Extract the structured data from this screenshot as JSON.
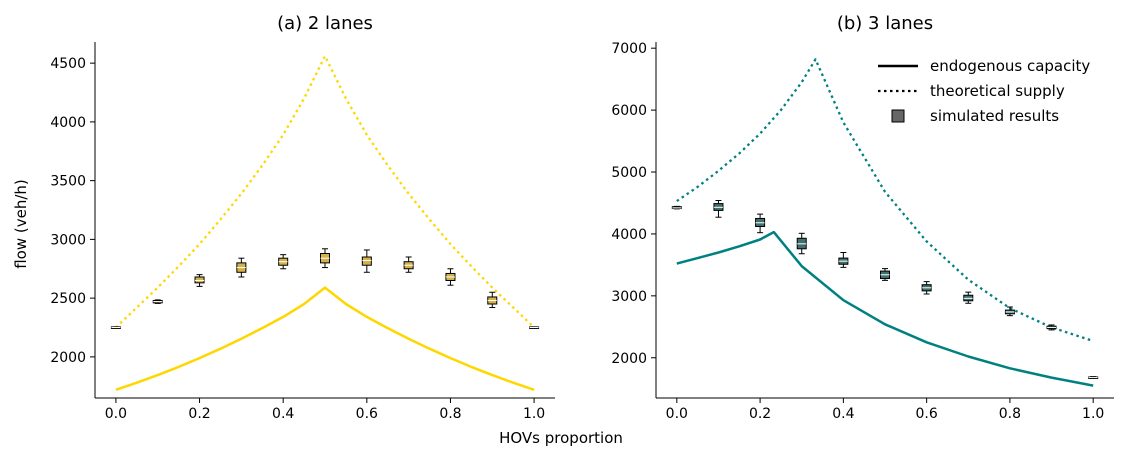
{
  "figure": {
    "shared_xlabel": "HOVs proportion",
    "shared_ylabel": "flow (veh/h)"
  },
  "chart_data": [
    {
      "type": "line",
      "title": "(a) 2 lanes",
      "xlabel": "HOVs proportion",
      "ylabel": "flow (veh/h)",
      "xlim": [
        -0.05,
        1.05
      ],
      "ylim": [
        1650,
        4680
      ],
      "xticks": [
        0.0,
        0.2,
        0.4,
        0.6,
        0.8,
        1.0
      ],
      "xtick_labels": [
        "0.0",
        "0.2",
        "0.4",
        "0.6",
        "0.8",
        "1.0"
      ],
      "yticks": [
        2000,
        2500,
        3000,
        3500,
        4000,
        4500
      ],
      "ytick_labels": [
        "2000",
        "2500",
        "3000",
        "3500",
        "4000",
        "4500"
      ],
      "color": "#FFD700",
      "box_fill": "#D4B24A",
      "series": [
        {
          "name": "endogenous capacity",
          "style": "solid",
          "x": [
            0.0,
            0.05,
            0.1,
            0.15,
            0.2,
            0.25,
            0.3,
            0.35,
            0.4,
            0.45,
            0.5,
            0.55,
            0.6,
            0.65,
            0.7,
            0.75,
            0.8,
            0.85,
            0.9,
            0.95,
            1.0
          ],
          "y": [
            1720,
            1780,
            1845,
            1915,
            1990,
            2070,
            2155,
            2245,
            2340,
            2450,
            2590,
            2450,
            2340,
            2245,
            2155,
            2070,
            1990,
            1915,
            1845,
            1780,
            1720
          ]
        },
        {
          "name": "theoretical supply",
          "style": "dotted",
          "x": [
            0.0,
            0.05,
            0.1,
            0.15,
            0.2,
            0.25,
            0.3,
            0.35,
            0.4,
            0.45,
            0.5,
            0.55,
            0.6,
            0.65,
            0.7,
            0.75,
            0.8,
            0.85,
            0.9,
            0.95,
            1.0
          ],
          "y": [
            2250,
            2420,
            2590,
            2770,
            2960,
            3170,
            3390,
            3630,
            3890,
            4200,
            4560,
            4200,
            3890,
            3630,
            3390,
            3170,
            2960,
            2770,
            2590,
            2420,
            2250
          ]
        }
      ],
      "boxes": [
        {
          "x": 0.0,
          "median": 2250,
          "q1": 2245,
          "q3": 2255,
          "lo": 2245,
          "hi": 2255
        },
        {
          "x": 0.1,
          "median": 2470,
          "q1": 2460,
          "q3": 2480,
          "lo": 2455,
          "hi": 2485
        },
        {
          "x": 0.2,
          "median": 2650,
          "q1": 2630,
          "q3": 2680,
          "lo": 2600,
          "hi": 2700
        },
        {
          "x": 0.3,
          "median": 2760,
          "q1": 2720,
          "q3": 2800,
          "lo": 2680,
          "hi": 2840
        },
        {
          "x": 0.4,
          "median": 2810,
          "q1": 2780,
          "q3": 2840,
          "lo": 2750,
          "hi": 2870
        },
        {
          "x": 0.5,
          "median": 2840,
          "q1": 2800,
          "q3": 2880,
          "lo": 2760,
          "hi": 2920
        },
        {
          "x": 0.6,
          "median": 2820,
          "q1": 2780,
          "q3": 2850,
          "lo": 2720,
          "hi": 2910
        },
        {
          "x": 0.7,
          "median": 2780,
          "q1": 2750,
          "q3": 2810,
          "lo": 2720,
          "hi": 2850
        },
        {
          "x": 0.8,
          "median": 2680,
          "q1": 2650,
          "q3": 2710,
          "lo": 2610,
          "hi": 2750
        },
        {
          "x": 0.9,
          "median": 2480,
          "q1": 2450,
          "q3": 2510,
          "lo": 2420,
          "hi": 2550
        },
        {
          "x": 1.0,
          "median": 2250,
          "q1": 2245,
          "q3": 2255,
          "lo": 2245,
          "hi": 2255
        }
      ]
    },
    {
      "type": "line",
      "title": "(b) 3 lanes",
      "xlabel": "HOVs proportion",
      "ylabel": "",
      "xlim": [
        -0.05,
        1.05
      ],
      "ylim": [
        1350,
        7100
      ],
      "xticks": [
        0.0,
        0.2,
        0.4,
        0.6,
        0.8,
        1.0
      ],
      "xtick_labels": [
        "0.0",
        "0.2",
        "0.4",
        "0.6",
        "0.8",
        "1.0"
      ],
      "yticks": [
        2000,
        3000,
        4000,
        5000,
        6000,
        7000
      ],
      "ytick_labels": [
        "2000",
        "3000",
        "4000",
        "5000",
        "6000",
        "7000"
      ],
      "color": "#008080",
      "box_fill": "#3F6F6F",
      "series": [
        {
          "name": "endogenous capacity",
          "style": "solid",
          "x": [
            0.0,
            0.05,
            0.1,
            0.15,
            0.2,
            0.233,
            0.3,
            0.4,
            0.5,
            0.6,
            0.7,
            0.8,
            0.9,
            1.0
          ],
          "y": [
            3520,
            3610,
            3700,
            3800,
            3910,
            4030,
            3480,
            2930,
            2540,
            2250,
            2020,
            1830,
            1680,
            1550
          ]
        },
        {
          "name": "theoretical supply",
          "style": "dotted",
          "x": [
            0.0,
            0.05,
            0.1,
            0.15,
            0.2,
            0.25,
            0.3,
            0.333,
            0.4,
            0.5,
            0.6,
            0.7,
            0.8,
            0.9,
            1.0
          ],
          "y": [
            4530,
            4760,
            5020,
            5300,
            5620,
            6000,
            6450,
            6820,
            5800,
            4680,
            3880,
            3260,
            2800,
            2490,
            2270
          ]
        }
      ],
      "boxes": [
        {
          "x": 0.0,
          "median": 4420,
          "q1": 4410,
          "q3": 4440,
          "lo": 4405,
          "hi": 4445
        },
        {
          "x": 0.1,
          "median": 4430,
          "q1": 4380,
          "q3": 4490,
          "lo": 4270,
          "hi": 4540
        },
        {
          "x": 0.2,
          "median": 4180,
          "q1": 4120,
          "q3": 4250,
          "lo": 4020,
          "hi": 4320
        },
        {
          "x": 0.3,
          "median": 3840,
          "q1": 3760,
          "q3": 3930,
          "lo": 3680,
          "hi": 4010
        },
        {
          "x": 0.4,
          "median": 3560,
          "q1": 3510,
          "q3": 3610,
          "lo": 3460,
          "hi": 3700
        },
        {
          "x": 0.5,
          "median": 3340,
          "q1": 3280,
          "q3": 3400,
          "lo": 3250,
          "hi": 3440
        },
        {
          "x": 0.6,
          "median": 3130,
          "q1": 3080,
          "q3": 3180,
          "lo": 3030,
          "hi": 3230
        },
        {
          "x": 0.7,
          "median": 2960,
          "q1": 2920,
          "q3": 3010,
          "lo": 2880,
          "hi": 3060
        },
        {
          "x": 0.8,
          "median": 2740,
          "q1": 2710,
          "q3": 2770,
          "lo": 2680,
          "hi": 2820
        },
        {
          "x": 0.9,
          "median": 2490,
          "q1": 2470,
          "q3": 2510,
          "lo": 2450,
          "hi": 2530
        },
        {
          "x": 1.0,
          "median": 1680,
          "q1": 1670,
          "q3": 1690,
          "lo": 1665,
          "hi": 1695
        }
      ],
      "legend": {
        "position": "top-right",
        "entries": [
          {
            "label": "endogenous capacity",
            "kind": "solid"
          },
          {
            "label": "theoretical supply",
            "kind": "dotted"
          },
          {
            "label": "simulated results",
            "kind": "box"
          }
        ]
      }
    }
  ]
}
